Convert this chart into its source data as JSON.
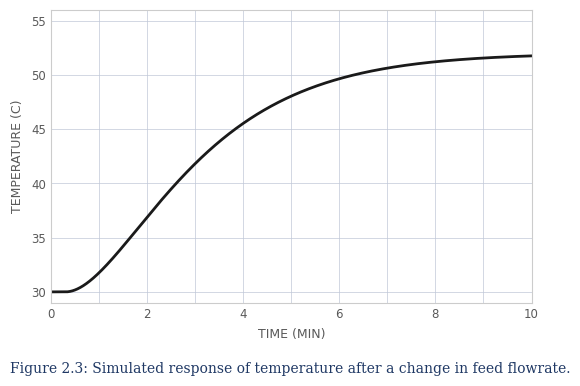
{
  "xlabel": "TIME (MIN)",
  "ylabel": "TEMPERATURE (C)",
  "caption": "Figure 2.3: Simulated response of temperature after a change in feed flowrate.",
  "xlim": [
    0,
    10
  ],
  "ylim": [
    29,
    56
  ],
  "xticks": [
    0,
    2,
    4,
    6,
    8,
    10
  ],
  "yticks": [
    30,
    35,
    40,
    45,
    50,
    55
  ],
  "line_color": "#1a1a1a",
  "line_width": 2.0,
  "grid_color": "#c0c8d8",
  "grid_alpha": 1.0,
  "T_initial": 30.0,
  "T_final": 52.0,
  "tau": 1.5,
  "delay": 0.3,
  "bg_color": "#ffffff",
  "border_color": "#aaaaaa",
  "xlabel_color": "#595959",
  "ylabel_color": "#595959",
  "tick_color": "#595959",
  "caption_color": "#1f3864",
  "caption_fontsize": 10,
  "axis_label_fontsize": 9,
  "tick_fontsize": 8.5
}
